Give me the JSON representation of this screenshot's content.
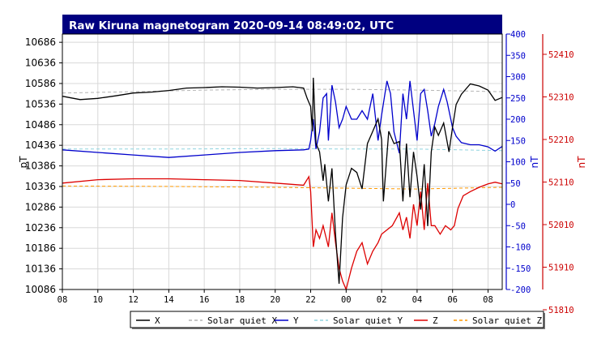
{
  "chart_data": {
    "type": "line",
    "title": "Raw Kiruna magnetogram 2020-09-14 08:49:02, UTC",
    "xlabel": "",
    "x_ticks": [
      "08",
      "10",
      "12",
      "14",
      "16",
      "18",
      "20",
      "22",
      "00",
      "02",
      "04",
      "06",
      "08"
    ],
    "x_range_hours": [
      8,
      32.8
    ],
    "left_axis": {
      "label": "pT",
      "ticks": [
        10686,
        10636,
        10586,
        10536,
        10486,
        10436,
        10386,
        10336,
        10286,
        10236,
        10186,
        10136,
        10086
      ],
      "range": [
        10086,
        10706
      ],
      "color": "#000000"
    },
    "middle_axis": {
      "label": "nT",
      "ticks": [
        400,
        350,
        300,
        250,
        200,
        150,
        100,
        50,
        0,
        -50,
        -100,
        -150,
        -200
      ],
      "range": [
        -200,
        400
      ],
      "color": "#0000cc"
    },
    "right_axis": {
      "label": "nT",
      "ticks": [
        52410,
        52310,
        52210,
        52110,
        52010,
        51910,
        51810
      ],
      "range": [
        51810,
        52410
      ],
      "color": "#cc0000"
    },
    "grid": true,
    "legend_position": "bottom",
    "series": [
      {
        "name": "X",
        "axis": "left",
        "color": "#000000",
        "style": "solid",
        "points": [
          [
            8.0,
            10555
          ],
          [
            9.0,
            10547
          ],
          [
            10.0,
            10550
          ],
          [
            11.0,
            10556
          ],
          [
            12.0,
            10563
          ],
          [
            13.0,
            10565
          ],
          [
            14.0,
            10569
          ],
          [
            15.0,
            10575
          ],
          [
            16.0,
            10576
          ],
          [
            17.0,
            10578
          ],
          [
            18.0,
            10577
          ],
          [
            19.0,
            10575
          ],
          [
            20.0,
            10576
          ],
          [
            21.0,
            10578
          ],
          [
            21.6,
            10575
          ],
          [
            21.8,
            10550
          ],
          [
            22.0,
            10530
          ],
          [
            22.1,
            10470
          ],
          [
            22.15,
            10600
          ],
          [
            22.3,
            10440
          ],
          [
            22.5,
            10420
          ],
          [
            22.7,
            10350
          ],
          [
            22.8,
            10390
          ],
          [
            23.0,
            10300
          ],
          [
            23.2,
            10380
          ],
          [
            23.4,
            10220
          ],
          [
            23.6,
            10100
          ],
          [
            23.8,
            10260
          ],
          [
            24.0,
            10340
          ],
          [
            24.3,
            10380
          ],
          [
            24.6,
            10370
          ],
          [
            24.9,
            10330
          ],
          [
            25.2,
            10440
          ],
          [
            25.5,
            10470
          ],
          [
            25.8,
            10500
          ],
          [
            26.0,
            10450
          ],
          [
            26.1,
            10300
          ],
          [
            26.4,
            10470
          ],
          [
            26.7,
            10440
          ],
          [
            27.0,
            10445
          ],
          [
            27.2,
            10300
          ],
          [
            27.4,
            10440
          ],
          [
            27.6,
            10310
          ],
          [
            27.8,
            10420
          ],
          [
            28.0,
            10360
          ],
          [
            28.2,
            10280
          ],
          [
            28.4,
            10390
          ],
          [
            28.6,
            10240
          ],
          [
            28.8,
            10420
          ],
          [
            29.0,
            10480
          ],
          [
            29.2,
            10460
          ],
          [
            29.5,
            10490
          ],
          [
            29.8,
            10420
          ],
          [
            30.0,
            10480
          ],
          [
            30.2,
            10535
          ],
          [
            30.5,
            10560
          ],
          [
            31.0,
            10585
          ],
          [
            31.5,
            10580
          ],
          [
            32.0,
            10570
          ],
          [
            32.4,
            10545
          ],
          [
            32.8,
            10552
          ]
        ]
      },
      {
        "name": "Solar quiet X",
        "axis": "left",
        "color": "#b4b4b4",
        "style": "dashed",
        "points": [
          [
            8.0,
            10563
          ],
          [
            12.0,
            10566
          ],
          [
            16.0,
            10570
          ],
          [
            20.0,
            10572
          ],
          [
            24.0,
            10572
          ],
          [
            28.0,
            10570
          ],
          [
            32.8,
            10566
          ]
        ]
      },
      {
        "name": "Y",
        "axis": "middle",
        "color": "#0000cc",
        "style": "solid",
        "points": [
          [
            8.0,
            128
          ],
          [
            10.0,
            122
          ],
          [
            12.0,
            116
          ],
          [
            14.0,
            110
          ],
          [
            16.0,
            116
          ],
          [
            18.0,
            122
          ],
          [
            20.0,
            126
          ],
          [
            21.6,
            128
          ],
          [
            21.9,
            130
          ],
          [
            22.0,
            150
          ],
          [
            22.15,
            200
          ],
          [
            22.3,
            130
          ],
          [
            22.5,
            170
          ],
          [
            22.7,
            250
          ],
          [
            22.9,
            260
          ],
          [
            23.0,
            150
          ],
          [
            23.2,
            280
          ],
          [
            23.4,
            240
          ],
          [
            23.6,
            180
          ],
          [
            23.8,
            200
          ],
          [
            24.0,
            230
          ],
          [
            24.3,
            200
          ],
          [
            24.6,
            200
          ],
          [
            24.9,
            220
          ],
          [
            25.2,
            200
          ],
          [
            25.5,
            260
          ],
          [
            25.8,
            150
          ],
          [
            26.0,
            210
          ],
          [
            26.3,
            290
          ],
          [
            26.5,
            260
          ],
          [
            26.7,
            170
          ],
          [
            27.0,
            120
          ],
          [
            27.2,
            260
          ],
          [
            27.4,
            200
          ],
          [
            27.6,
            290
          ],
          [
            27.8,
            220
          ],
          [
            28.0,
            150
          ],
          [
            28.2,
            260
          ],
          [
            28.4,
            270
          ],
          [
            28.6,
            220
          ],
          [
            28.8,
            160
          ],
          [
            29.0,
            190
          ],
          [
            29.2,
            230
          ],
          [
            29.5,
            270
          ],
          [
            29.7,
            240
          ],
          [
            30.0,
            180
          ],
          [
            30.2,
            160
          ],
          [
            30.5,
            145
          ],
          [
            31.0,
            140
          ],
          [
            31.5,
            140
          ],
          [
            32.0,
            135
          ],
          [
            32.4,
            125
          ],
          [
            32.8,
            136
          ]
        ]
      },
      {
        "name": "Solar quiet Y",
        "axis": "middle",
        "color": "#8fd3df",
        "style": "dashed",
        "points": [
          [
            8.0,
            130
          ],
          [
            14.0,
            130
          ],
          [
            20.0,
            131
          ],
          [
            24.0,
            130
          ],
          [
            28.0,
            130
          ],
          [
            32.8,
            126
          ]
        ]
      },
      {
        "name": "Z",
        "axis": "right",
        "color": "#dd0000",
        "style": "solid",
        "points": [
          [
            8.0,
            52060
          ],
          [
            10.0,
            52068
          ],
          [
            12.0,
            52070
          ],
          [
            14.0,
            52070
          ],
          [
            16.0,
            52068
          ],
          [
            18.0,
            52066
          ],
          [
            20.0,
            52060
          ],
          [
            21.6,
            52055
          ],
          [
            21.9,
            52075
          ],
          [
            22.0,
            52040
          ],
          [
            22.15,
            51910
          ],
          [
            22.3,
            51950
          ],
          [
            22.5,
            51930
          ],
          [
            22.7,
            51960
          ],
          [
            23.0,
            51910
          ],
          [
            23.2,
            51990
          ],
          [
            23.4,
            51920
          ],
          [
            23.6,
            51860
          ],
          [
            23.8,
            51830
          ],
          [
            24.0,
            51810
          ],
          [
            24.3,
            51860
          ],
          [
            24.6,
            51900
          ],
          [
            24.9,
            51920
          ],
          [
            25.2,
            51870
          ],
          [
            25.5,
            51900
          ],
          [
            25.8,
            51920
          ],
          [
            26.0,
            51940
          ],
          [
            26.3,
            51950
          ],
          [
            26.6,
            51960
          ],
          [
            27.0,
            51990
          ],
          [
            27.2,
            51950
          ],
          [
            27.4,
            51980
          ],
          [
            27.6,
            51930
          ],
          [
            27.8,
            52010
          ],
          [
            28.0,
            51960
          ],
          [
            28.2,
            52040
          ],
          [
            28.4,
            51950
          ],
          [
            28.6,
            52060
          ],
          [
            28.8,
            51960
          ],
          [
            29.0,
            51960
          ],
          [
            29.3,
            51940
          ],
          [
            29.6,
            51960
          ],
          [
            29.9,
            51950
          ],
          [
            30.1,
            51960
          ],
          [
            30.3,
            52000
          ],
          [
            30.6,
            52030
          ],
          [
            31.0,
            52040
          ],
          [
            31.5,
            52050
          ],
          [
            32.0,
            52058
          ],
          [
            32.4,
            52062
          ],
          [
            32.8,
            52058
          ]
        ]
      },
      {
        "name": "Solar quiet Z",
        "axis": "right",
        "color": "#ff9900",
        "style": "dashed",
        "points": [
          [
            8.0,
            52053
          ],
          [
            14.0,
            52052
          ],
          [
            20.0,
            52050
          ],
          [
            24.0,
            52048
          ],
          [
            28.0,
            52046
          ],
          [
            32.8,
            52050
          ]
        ]
      }
    ]
  },
  "legend_items": [
    {
      "label": "X",
      "color": "#000000",
      "dashed": false
    },
    {
      "label": "Solar quiet X",
      "color": "#b4b4b4",
      "dashed": true
    },
    {
      "label": "Y",
      "color": "#0000cc",
      "dashed": false
    },
    {
      "label": "Solar quiet Y",
      "color": "#8fd3df",
      "dashed": true
    },
    {
      "label": "Z",
      "color": "#dd0000",
      "dashed": false
    },
    {
      "label": "Solar quiet Z",
      "color": "#ff9900",
      "dashed": true
    }
  ],
  "colors": {
    "title_bar": "#000080",
    "grid": "#d8d8d8",
    "plot_border": "#000000"
  }
}
